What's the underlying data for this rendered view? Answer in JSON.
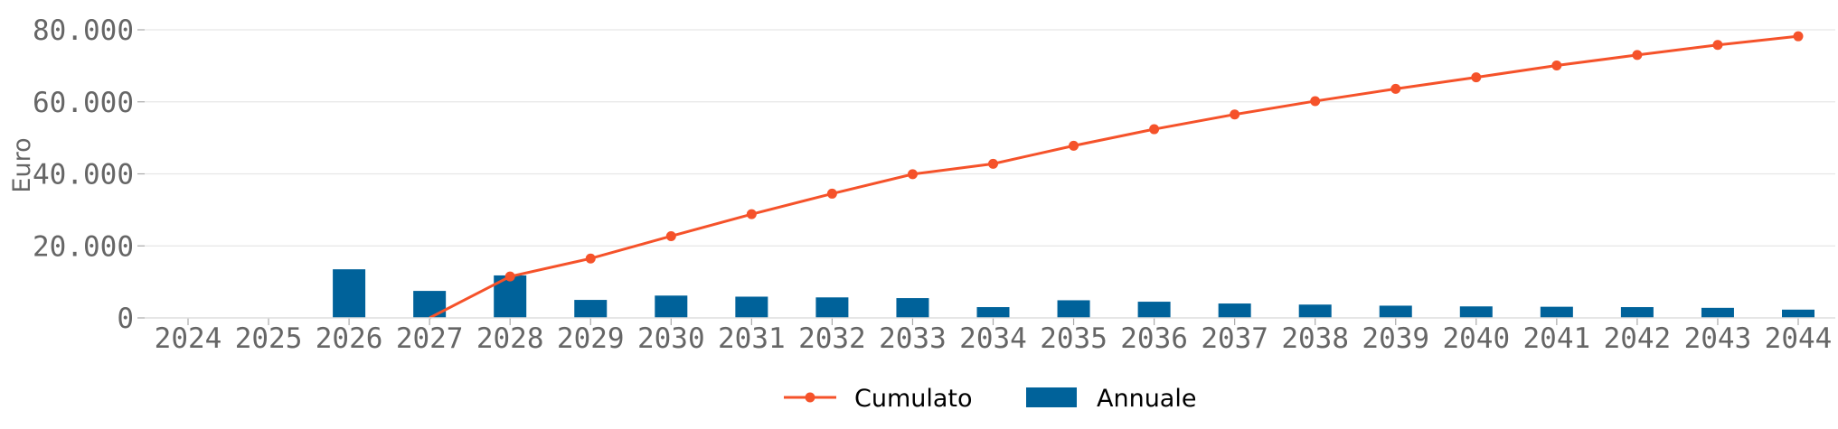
{
  "chart_data": {
    "type": "bar",
    "categories": [
      "2024",
      "2025",
      "2026",
      "2027",
      "2028",
      "2029",
      "2030",
      "2031",
      "2032",
      "2033",
      "2034",
      "2035",
      "2036",
      "2037",
      "2038",
      "2039",
      "2040",
      "2041",
      "2042",
      "2043",
      "2044"
    ],
    "series": [
      {
        "name": "Annuale",
        "type": "bar",
        "color": "#00629a",
        "values": [
          0,
          0,
          13500,
          7500,
          11800,
          5000,
          6200,
          5900,
          5700,
          5500,
          3000,
          4900,
          4500,
          4000,
          3700,
          3400,
          3200,
          3100,
          3000,
          2800,
          2300
        ]
      },
      {
        "name": "Cumulato",
        "type": "line",
        "color": "#f5522a",
        "values": [
          null,
          null,
          null,
          0,
          11500,
          16500,
          22700,
          28800,
          34500,
          39900,
          42800,
          47800,
          52400,
          56500,
          60200,
          63600,
          66800,
          70100,
          73000,
          75800,
          78200
        ]
      }
    ],
    "ylabel": "Euro",
    "ylim": [
      0,
      80000
    ],
    "yticks": [
      0,
      20000,
      40000,
      60000,
      80000
    ],
    "ytick_labels": [
      "0",
      "20.000",
      "40.000",
      "60.000",
      "80.000"
    ],
    "grid": true,
    "legend_position": "bottom-center"
  }
}
